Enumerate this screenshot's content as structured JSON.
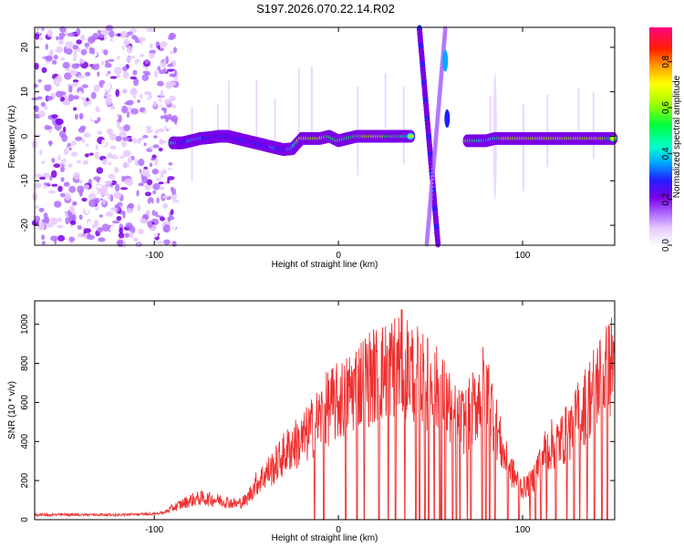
{
  "title": "S197.2026.070.22.14.R02",
  "chart_data": [
    {
      "type": "heatmap",
      "name": "spectrogram",
      "xlabel": "Height of straight line (km)",
      "ylabel": "Frequency (Hz)",
      "xlim": [
        -165,
        150
      ],
      "ylim": [
        -24.5,
        24.5
      ],
      "xticks": [
        -100,
        0,
        100
      ],
      "yticks": [
        -20,
        -10,
        0,
        10,
        20
      ],
      "colorbar": {
        "label": "Normalized spectral amplitude",
        "range": [
          0,
          0.95
        ],
        "ticks": [
          0.0,
          0.2,
          0.4,
          0.6,
          0.8
        ],
        "colors": [
          "#ffffff",
          "#e6c8ff",
          "#b070ff",
          "#7a00e6",
          "#2020ff",
          "#00aaff",
          "#00ffcc",
          "#00ff40",
          "#a0ff00",
          "#ffff00",
          "#ffa000",
          "#ff2000",
          "#ff0080"
        ]
      },
      "tracks": [
        {
          "x": [
            -90,
            -85,
            -80,
            -75,
            -70,
            -65,
            -60,
            -55,
            -50,
            -45,
            -40,
            -35,
            -30,
            -25,
            -20,
            -15,
            -10,
            -5,
            0,
            5,
            10,
            15,
            20,
            25,
            30,
            35,
            40
          ],
          "freq": [
            -1.5,
            -1.5,
            -1,
            -0.5,
            -0.3,
            0,
            0,
            -0.5,
            -1,
            -1.5,
            -2,
            -2.5,
            -3,
            -2.8,
            -0.5,
            -0.5,
            -0.5,
            0,
            -1,
            -0.5,
            0,
            0,
            0,
            0,
            0,
            0,
            0
          ],
          "amp": [
            0.7,
            0.4,
            0.5,
            0.5,
            0.45,
            0.45,
            0.45,
            0.45,
            0.4,
            0.4,
            0.4,
            0.5,
            0.45,
            0.5,
            0.85,
            0.8,
            0.85,
            0.75,
            0.7,
            0.7,
            0.75,
            0.8,
            0.8,
            0.8,
            0.75,
            0.7,
            0.6
          ]
        },
        {
          "x": [
            70,
            75,
            80,
            85,
            90,
            95,
            100,
            105,
            110,
            115,
            120,
            125,
            130,
            135,
            140,
            145,
            150
          ],
          "freq": [
            -1,
            -1,
            -1,
            -0.5,
            -0.5,
            -0.5,
            -0.5,
            -0.5,
            -0.5,
            -0.5,
            -0.5,
            -0.5,
            -0.5,
            -0.5,
            -0.5,
            -0.5,
            -0.5
          ],
          "amp": [
            0.8,
            0.75,
            0.55,
            0.6,
            0.8,
            0.9,
            0.85,
            0.8,
            0.85,
            0.85,
            0.8,
            0.85,
            0.8,
            0.8,
            0.85,
            0.8,
            0.7
          ]
        }
      ]
    },
    {
      "type": "line",
      "name": "snr",
      "xlabel": "Height of straight line (km)",
      "ylabel": "SNR (10 * v/v)",
      "xlim": [
        -165,
        150
      ],
      "ylim": [
        0,
        1120
      ],
      "xticks": [
        -100,
        0,
        100
      ],
      "yticks": [
        0,
        200,
        400,
        600,
        800,
        1000
      ],
      "color": "#ee3030",
      "series": [
        {
          "name": "SNR",
          "x": [
            -165,
            -150,
            -135,
            -120,
            -105,
            -95,
            -90,
            -85,
            -80,
            -75,
            -70,
            -65,
            -60,
            -55,
            -50,
            -45,
            -40,
            -35,
            -30,
            -25,
            -20,
            -15,
            -10,
            -5,
            0,
            5,
            10,
            15,
            20,
            25,
            30,
            35,
            40,
            45,
            50,
            55,
            60,
            65,
            70,
            75,
            80,
            85,
            90,
            95,
            100,
            105,
            110,
            115,
            120,
            125,
            130,
            135,
            140,
            145,
            150
          ],
          "y": [
            25,
            25,
            25,
            25,
            28,
            35,
            60,
            80,
            100,
            110,
            105,
            100,
            90,
            80,
            100,
            180,
            230,
            270,
            330,
            380,
            400,
            460,
            520,
            580,
            600,
            640,
            690,
            720,
            740,
            760,
            790,
            800,
            760,
            720,
            690,
            650,
            580,
            500,
            520,
            600,
            700,
            500,
            320,
            230,
            160,
            190,
            320,
            380,
            400,
            450,
            530,
            600,
            700,
            740,
            820
          ]
        }
      ],
      "dropouts": [
        -13,
        -8,
        4,
        10,
        14,
        22,
        27,
        31,
        36,
        42,
        44,
        47,
        49,
        52,
        55,
        56,
        58,
        62,
        64,
        66,
        70,
        72,
        78,
        80,
        82,
        85,
        92,
        98,
        104,
        107,
        110,
        113,
        118,
        124,
        128,
        131,
        135,
        139,
        143,
        146
      ]
    }
  ]
}
